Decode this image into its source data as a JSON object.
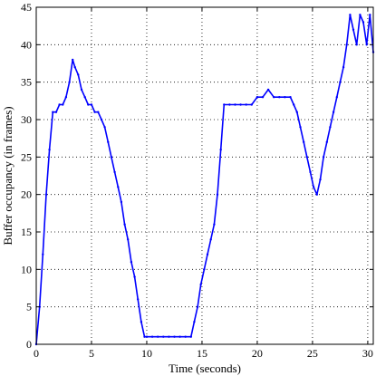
{
  "chart_data": {
    "type": "line",
    "title": "",
    "xlabel": "Time (seconds)",
    "ylabel": "Buffer occupancy (in frames)",
    "xlim": [
      0,
      30.5
    ],
    "ylim": [
      0,
      45
    ],
    "xticks": [
      0,
      5,
      10,
      15,
      20,
      25,
      30
    ],
    "yticks": [
      0,
      5,
      10,
      15,
      20,
      25,
      30,
      35,
      40,
      45
    ],
    "grid": true,
    "line_color": "#0000ff",
    "series": [
      {
        "name": "",
        "x": [
          0,
          0.3,
          0.6,
          0.9,
          1.2,
          1.5,
          1.8,
          2.1,
          2.4,
          2.7,
          3.0,
          3.3,
          3.5,
          3.8,
          4.1,
          4.4,
          4.7,
          5.0,
          5.3,
          5.6,
          5.9,
          6.2,
          6.5,
          6.8,
          7.1,
          7.4,
          7.7,
          8.0,
          8.3,
          8.6,
          8.9,
          9.2,
          9.5,
          9.8,
          10.0,
          10.5,
          11.0,
          11.5,
          12.0,
          12.5,
          13.0,
          13.5,
          14.0,
          14.3,
          14.6,
          14.9,
          15.2,
          15.5,
          15.8,
          16.1,
          16.4,
          16.7,
          17.0,
          17.5,
          18.0,
          18.5,
          19.0,
          19.5,
          20.0,
          20.5,
          21.0,
          21.5,
          22.0,
          22.5,
          23.0,
          23.3,
          23.6,
          23.9,
          24.2,
          24.5,
          24.8,
          25.1,
          25.4,
          25.7,
          26.0,
          26.3,
          26.6,
          26.9,
          27.2,
          27.5,
          27.8,
          28.1,
          28.4,
          28.7,
          29.0,
          29.3,
          29.6,
          29.9,
          30.2,
          30.5
        ],
        "y": [
          0,
          5,
          12,
          20,
          26,
          31,
          31,
          32,
          32,
          33,
          35,
          38,
          37,
          36,
          34,
          33,
          32,
          32,
          31,
          31,
          30,
          29,
          27,
          25,
          23,
          21,
          19,
          16,
          14,
          11,
          9,
          6,
          3,
          1,
          1,
          1,
          1,
          1,
          1,
          1,
          1,
          1,
          1,
          3,
          5,
          8,
          10,
          12,
          14,
          16,
          20,
          26,
          32,
          32,
          32,
          32,
          32,
          32,
          33,
          33,
          34,
          33,
          33,
          33,
          33,
          32,
          31,
          29,
          27,
          25,
          23,
          21,
          20,
          22,
          25,
          27,
          29,
          31,
          33,
          35,
          37,
          40,
          44,
          42,
          40,
          44,
          43,
          40,
          44,
          39
        ]
      }
    ]
  }
}
